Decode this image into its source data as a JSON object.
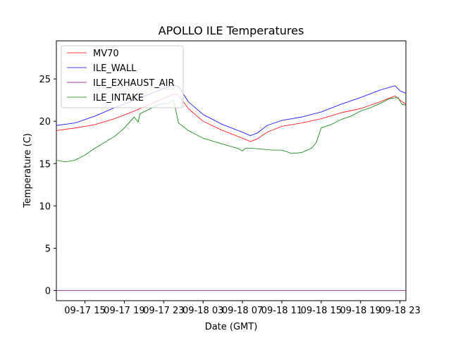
{
  "chart_data": {
    "type": "line",
    "title": "APOLLO ILE Temperatures",
    "xlabel": "Date (GMT)",
    "ylabel": "Temperature (C)",
    "xlim": [
      12.1,
      47.6
    ],
    "ylim": [
      -1.2,
      29.5
    ],
    "xticks": [
      {
        "value": 15,
        "label": "09-17 15"
      },
      {
        "value": 19,
        "label": "09-17 19"
      },
      {
        "value": 23,
        "label": "09-17 23"
      },
      {
        "value": 27,
        "label": "09-18 03"
      },
      {
        "value": 31,
        "label": "09-18 07"
      },
      {
        "value": 35,
        "label": "09-18 11"
      },
      {
        "value": 39,
        "label": "09-18 15"
      },
      {
        "value": 43,
        "label": "09-18 19"
      },
      {
        "value": 47,
        "label": "09-18 23"
      }
    ],
    "yticks": [
      0,
      5,
      10,
      15,
      20,
      25
    ],
    "legend": "top-left",
    "grid": false,
    "series": [
      {
        "name": "MV70",
        "color": "#ff0000",
        "x": [
          12.1,
          14.0,
          16.0,
          18.0,
          20.0,
          22.0,
          24.0,
          24.5,
          25.5,
          27.0,
          29.0,
          31.0,
          31.8,
          32.5,
          33.5,
          35.0,
          37.0,
          39.0,
          41.0,
          43.0,
          45.0,
          46.5,
          47.0,
          47.6
        ],
        "y": [
          18.9,
          19.2,
          19.6,
          20.3,
          21.2,
          22.2,
          23.2,
          23.1,
          21.5,
          20.0,
          18.9,
          18.0,
          17.6,
          17.9,
          18.7,
          19.4,
          19.8,
          20.3,
          21.0,
          21.5,
          22.3,
          23.0,
          22.5,
          22.0
        ]
      },
      {
        "name": "ILE_WALL",
        "color": "#0000ff",
        "x": [
          12.1,
          14.0,
          16.0,
          18.0,
          20.0,
          22.0,
          24.0,
          24.5,
          25.5,
          27.0,
          29.0,
          31.0,
          31.8,
          32.5,
          33.5,
          35.0,
          37.0,
          39.0,
          41.0,
          43.0,
          45.0,
          46.5,
          47.0,
          47.6
        ],
        "y": [
          19.5,
          19.8,
          20.6,
          21.6,
          22.5,
          23.4,
          24.3,
          24.1,
          22.3,
          20.8,
          19.6,
          18.7,
          18.3,
          18.6,
          19.5,
          20.1,
          20.5,
          21.1,
          22.0,
          22.8,
          23.7,
          24.2,
          23.6,
          23.3
        ]
      },
      {
        "name": "ILE_EXHAUST_AIR",
        "color": "#800080",
        "x": [
          12.1,
          47.6
        ],
        "y": [
          0.0,
          0.0
        ]
      },
      {
        "name": "ILE_INTAKE",
        "color": "#008000",
        "x": [
          12.1,
          13.0,
          14.0,
          15.0,
          16.0,
          17.0,
          18.0,
          19.0,
          20.0,
          20.4,
          20.6,
          21.5,
          22.5,
          23.5,
          24.0,
          24.5,
          25.5,
          27.0,
          29.0,
          30.5,
          31.0,
          31.3,
          32.0,
          34.0,
          35.0,
          36.0,
          37.0,
          38.0,
          38.5,
          39.0,
          40.0,
          41.0,
          42.0,
          43.0,
          44.0,
          45.0,
          46.0,
          46.8,
          47.2,
          47.6
        ],
        "y": [
          15.4,
          15.2,
          15.4,
          16.0,
          16.8,
          17.5,
          18.2,
          19.2,
          20.5,
          19.9,
          20.9,
          21.4,
          22.0,
          22.1,
          22.5,
          19.8,
          18.9,
          18.0,
          17.3,
          16.8,
          16.5,
          16.8,
          16.8,
          16.6,
          16.6,
          16.2,
          16.3,
          16.8,
          17.5,
          19.2,
          19.6,
          20.2,
          20.6,
          21.2,
          21.6,
          22.1,
          22.7,
          22.8,
          22.0,
          21.9
        ]
      }
    ]
  }
}
